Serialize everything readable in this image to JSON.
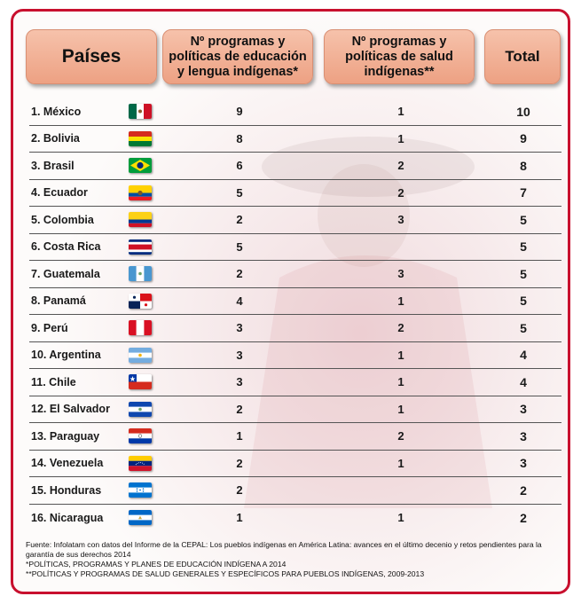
{
  "headers": {
    "paises": "Países",
    "edu": "Nº programas y políticas de educación y lengua indígenas*",
    "salud": "Nº programas y políticas de salud indígenas**",
    "total": "Total"
  },
  "rows": [
    {
      "name": "1. México",
      "flag": "mexico-flag-icon",
      "edu": "9",
      "salud": "1",
      "total": "10"
    },
    {
      "name": "2. Bolivia",
      "flag": "bolivia-flag-icon",
      "edu": "8",
      "salud": "1",
      "total": "9"
    },
    {
      "name": "3. Brasil",
      "flag": "brazil-flag-icon",
      "edu": "6",
      "salud": "2",
      "total": "8"
    },
    {
      "name": "4. Ecuador",
      "flag": "ecuador-flag-icon",
      "edu": "5",
      "salud": "2",
      "total": "7"
    },
    {
      "name": "5. Colombia",
      "flag": "colombia-flag-icon",
      "edu": "2",
      "salud": "3",
      "total": "5"
    },
    {
      "name": "6. Costa Rica",
      "flag": "costa-rica-flag-icon",
      "edu": "5",
      "salud": "",
      "total": "5"
    },
    {
      "name": "7. Guatemala",
      "flag": "guatemala-flag-icon",
      "edu": "2",
      "salud": "3",
      "total": "5"
    },
    {
      "name": "8. Panamá",
      "flag": "panama-flag-icon",
      "edu": "4",
      "salud": "1",
      "total": "5"
    },
    {
      "name": "9. Perú",
      "flag": "peru-flag-icon",
      "edu": "3",
      "salud": "2",
      "total": "5"
    },
    {
      "name": "10.   Argentina",
      "flag": "argentina-flag-icon",
      "edu": "3",
      "salud": "1",
      "total": "4"
    },
    {
      "name": "11.   Chile",
      "flag": "chile-flag-icon",
      "edu": "3",
      "salud": "1",
      "total": "4"
    },
    {
      "name": "12.  El Salvador",
      "flag": "el-salvador-flag-icon",
      "edu": "2",
      "salud": "1",
      "total": "3"
    },
    {
      "name": "13.   Paraguay",
      "flag": "paraguay-flag-icon",
      "edu": "1",
      "salud": "2",
      "total": "3"
    },
    {
      "name": "14.  Venezuela",
      "flag": "venezuela-flag-icon",
      "edu": "2",
      "salud": "1",
      "total": "3"
    },
    {
      "name": "15.   Honduras",
      "flag": "honduras-flag-icon",
      "edu": "2",
      "salud": "",
      "total": "2"
    },
    {
      "name": "16.  Nicaragua",
      "flag": "nicaragua-flag-icon",
      "edu": "1",
      "salud": "1",
      "total": "2"
    }
  ],
  "footnotes": {
    "source": "Fuente: Infolatam con datos del Informe de la CEPAL: Los pueblos indígenas en América Latina: avances en el último decenio y retos pendientes para la garantía de sus derechos 2014",
    "note1": "*POLÍTICAS, PROGRAMAS Y PLANES DE EDUCACIÓN INDÍGENA A 2014",
    "note2": "**POLÍTICAS Y PROGRAMAS DE SALUD GENERALES Y ESPECÍFICOS PARA PUEBLOS INDÍGENAS, 2009-2013"
  },
  "colors": {
    "border": "#c8102e",
    "header_fill": "#eda183"
  }
}
